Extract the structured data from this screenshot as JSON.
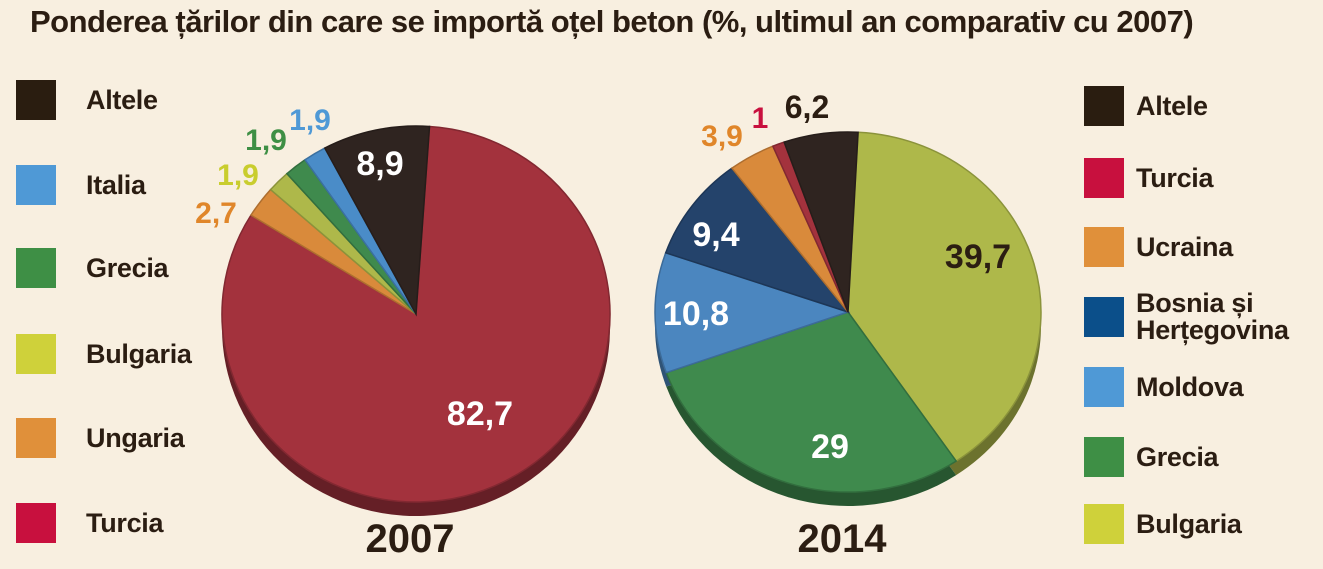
{
  "title": "Ponderea țărilor din care se importă oțel beton (%, ultimul an comparativ cu 2007)",
  "colors": {
    "Altele": "#2f2420",
    "Turcia": "#a3323d",
    "Italia": "#4a8cc8",
    "Grecia": "#3f8a4d",
    "Bulgaria": "#aeb84a",
    "Ungaria": "#d98a3b",
    "Ucraina": "#d98a3b",
    "Bosnia": "#24436b",
    "Moldova": "#4b86bf"
  },
  "legend_left": [
    {
      "label": "Altele",
      "color": "#2a1d10"
    },
    {
      "label": "Italia",
      "color": "#4f99d6"
    },
    {
      "label": "Grecia",
      "color": "#3e8f45"
    },
    {
      "label": "Bulgaria",
      "color": "#cfd13a"
    },
    {
      "label": "Ungaria",
      "color": "#e0903a"
    },
    {
      "label": "Turcia",
      "color": "#c8103e"
    }
  ],
  "legend_right": [
    {
      "label": "Altele",
      "color": "#2a1d10"
    },
    {
      "label": "Turcia",
      "color": "#c8103e"
    },
    {
      "label": "Ucraina",
      "color": "#e0903a"
    },
    {
      "label": "Bosnia și Herțegovina",
      "color": "#0b4f8a"
    },
    {
      "label": "Moldova",
      "color": "#4f99d6"
    },
    {
      "label": "Grecia",
      "color": "#3e8f45"
    },
    {
      "label": "Bulgaria",
      "color": "#cfd13a"
    }
  ],
  "chart_data": [
    {
      "type": "pie",
      "year_label": "2007",
      "slices": [
        {
          "name": "Turcia",
          "value": 82.7,
          "label": "82,7",
          "color": "#a3323d",
          "label_color": "#ffffff"
        },
        {
          "name": "Ungaria",
          "value": 2.7,
          "label": "2,7",
          "color": "#d98a3b",
          "label_color": "#e0862a"
        },
        {
          "name": "Bulgaria",
          "value": 1.9,
          "label": "1,9",
          "color": "#aeb84a",
          "label_color": "#c9cd2e"
        },
        {
          "name": "Grecia",
          "value": 1.9,
          "label": "1,9",
          "color": "#3f8a4d",
          "label_color": "#3e8f45"
        },
        {
          "name": "Italia",
          "value": 1.9,
          "label": "1,9",
          "color": "#4a8cc8",
          "label_color": "#4f99d6"
        },
        {
          "name": "Altele",
          "value": 8.9,
          "label": "8,9",
          "color": "#2f2420",
          "label_color": "#ffffff"
        }
      ]
    },
    {
      "type": "pie",
      "year_label": "2014",
      "slices": [
        {
          "name": "Bulgaria",
          "value": 39.7,
          "label": "39,7",
          "color": "#aeb84a",
          "label_color": "#2b1d12"
        },
        {
          "name": "Grecia",
          "value": 29,
          "label": "29",
          "color": "#3f8a4d",
          "label_color": "#ffffff"
        },
        {
          "name": "Moldova",
          "value": 10.8,
          "label": "10,8",
          "color": "#4b86bf",
          "label_color": "#ffffff"
        },
        {
          "name": "Bosnia și Herțegovina",
          "value": 9.4,
          "label": "9,4",
          "color": "#24436b",
          "label_color": "#ffffff"
        },
        {
          "name": "Ucraina",
          "value": 3.9,
          "label": "3,9",
          "color": "#d98a3b",
          "label_color": "#e0862a"
        },
        {
          "name": "Turcia",
          "value": 1,
          "label": "1",
          "color": "#a3323d",
          "label_color": "#c8103e"
        },
        {
          "name": "Altele",
          "value": 6.2,
          "label": "6,2",
          "color": "#2f2420",
          "label_color": "#2b1d12"
        }
      ]
    }
  ]
}
